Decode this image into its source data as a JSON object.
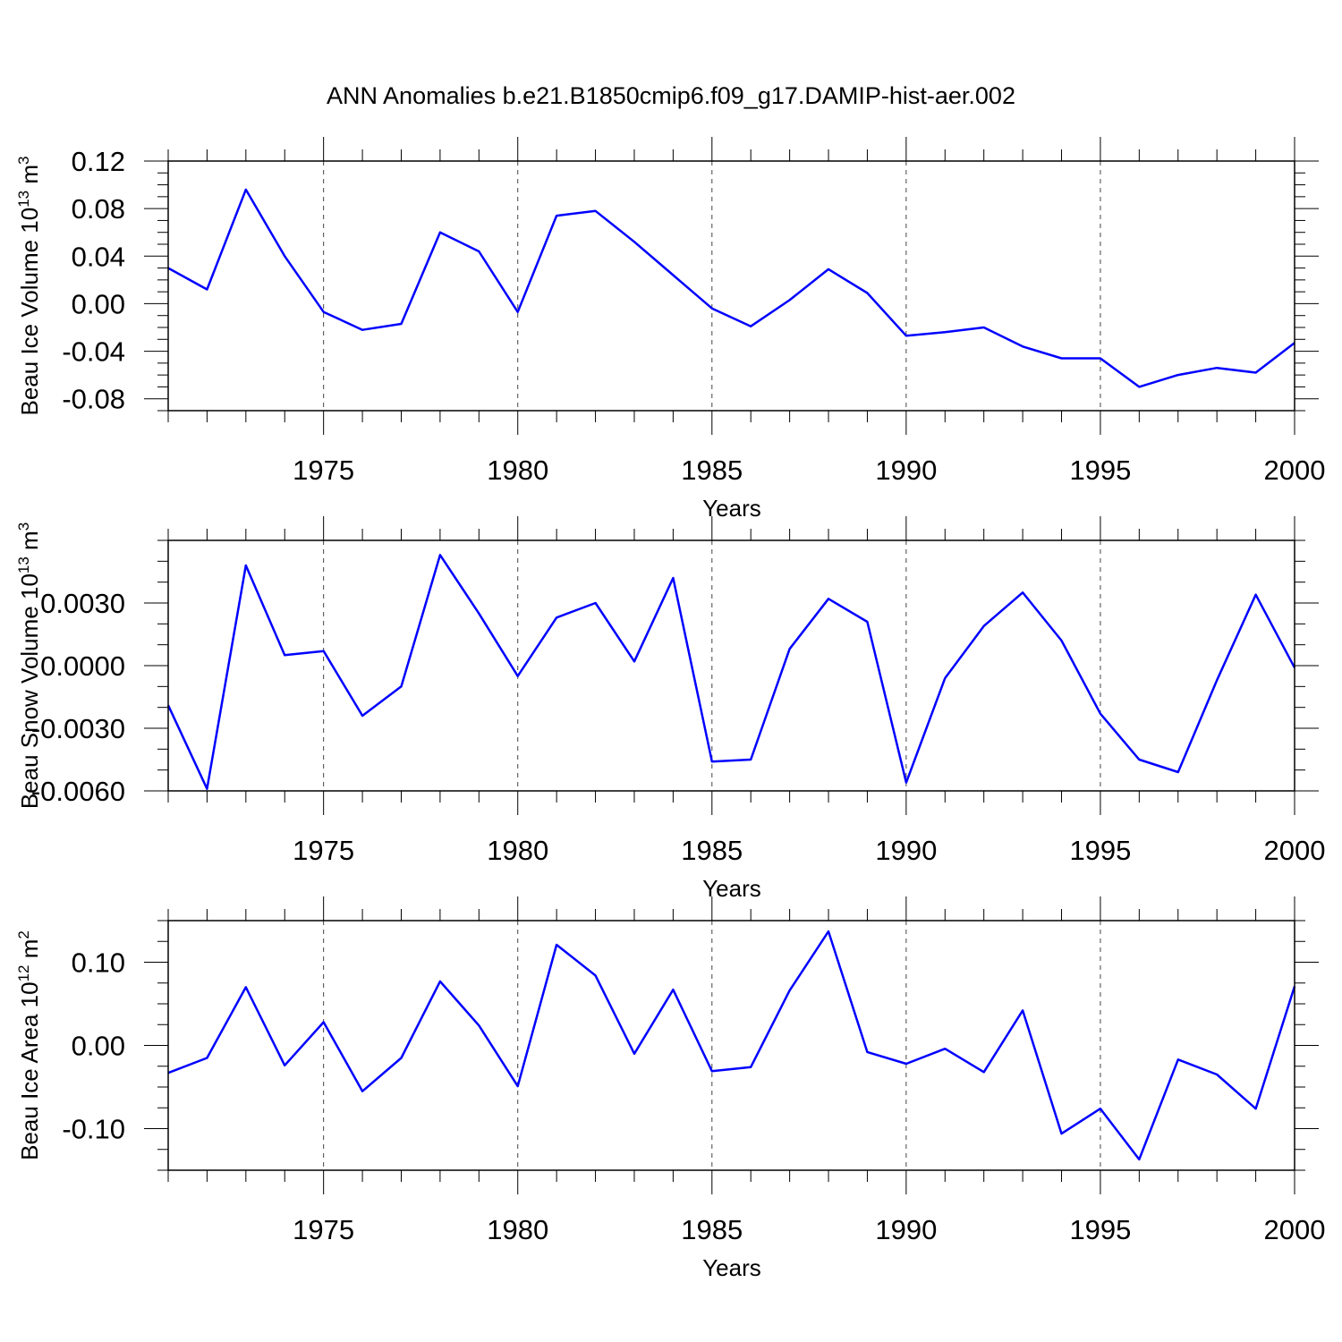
{
  "title": "ANN Anomalies b.e21.B1850cmip6.f09_g17.DAMIP-hist-aer.002",
  "colors": {
    "line": "#0000ff",
    "axes": "#000000",
    "grid": "#444444"
  },
  "chart_data": [
    {
      "type": "line",
      "name": "ice-volume",
      "ylabel_main": "Beau Ice Volume 10",
      "ylabel_sup": "13",
      "ylabel_unit": " m",
      "ylabel_unit_sup": "3",
      "xlabel": "Years",
      "xlim": [
        1971,
        2000
      ],
      "ylim": [
        -0.09,
        0.12
      ],
      "yticks": [
        0.12,
        0.08,
        0.04,
        0.0,
        -0.04,
        -0.08
      ],
      "ytick_labels": [
        "0.12",
        "0.08",
        "0.04",
        "0.00",
        "-0.04",
        "-0.08"
      ],
      "yminor_step": 0.01,
      "xticks": [
        1975,
        1980,
        1985,
        1990,
        1995,
        2000
      ],
      "xtick_labels": [
        "1975",
        "1980",
        "1985",
        "1990",
        "1995",
        "2000"
      ],
      "x": [
        1971,
        1972,
        1973,
        1974,
        1975,
        1976,
        1977,
        1978,
        1979,
        1980,
        1981,
        1982,
        1983,
        1984,
        1985,
        1986,
        1987,
        1988,
        1989,
        1990,
        1991,
        1992,
        1993,
        1994,
        1995,
        1996,
        1997,
        1998,
        1999,
        2000
      ],
      "values": [
        0.03,
        0.012,
        0.096,
        0.04,
        -0.007,
        -0.022,
        -0.017,
        0.06,
        0.044,
        -0.007,
        0.074,
        0.078,
        0.052,
        0.024,
        -0.004,
        -0.019,
        0.003,
        0.029,
        0.009,
        -0.027,
        -0.024,
        -0.02,
        -0.036,
        -0.046,
        -0.046,
        -0.07,
        -0.06,
        -0.054,
        -0.058,
        -0.033
      ]
    },
    {
      "type": "line",
      "name": "snow-volume",
      "ylabel_main": "Beau Snow Volume 10",
      "ylabel_sup": "13",
      "ylabel_unit": " m",
      "ylabel_unit_sup": "3",
      "xlabel": "Years",
      "xlim": [
        1971,
        2000
      ],
      "ylim": [
        -0.006,
        0.006
      ],
      "yticks": [
        0.003,
        0.0,
        -0.003,
        -0.006
      ],
      "ytick_labels": [
        "0.0030",
        "0.0000",
        "-0.0030",
        "-0.0060"
      ],
      "yminor_step": 0.001,
      "xticks": [
        1975,
        1980,
        1985,
        1990,
        1995,
        2000
      ],
      "xtick_labels": [
        "1975",
        "1980",
        "1985",
        "1990",
        "1995",
        "2000"
      ],
      "x": [
        1971,
        1972,
        1973,
        1974,
        1975,
        1976,
        1977,
        1978,
        1979,
        1980,
        1981,
        1982,
        1983,
        1984,
        1985,
        1986,
        1987,
        1988,
        1989,
        1990,
        1991,
        1992,
        1993,
        1994,
        1995,
        1996,
        1997,
        1998,
        1999,
        2000
      ],
      "values": [
        -0.0019,
        -0.0059,
        0.0048,
        0.0005,
        0.0007,
        -0.0024,
        -0.001,
        0.0053,
        0.0025,
        -0.0005,
        0.0023,
        0.003,
        0.0002,
        0.0042,
        -0.0046,
        -0.0045,
        0.0008,
        0.0032,
        0.0021,
        -0.0056,
        -0.0006,
        0.0019,
        0.0035,
        0.0012,
        -0.0023,
        -0.0045,
        -0.0051,
        -0.0007,
        0.0034,
        -0.0001
      ]
    },
    {
      "type": "line",
      "name": "ice-area",
      "ylabel_main": "Beau Ice Area 10",
      "ylabel_sup": "12",
      "ylabel_unit": " m",
      "ylabel_unit_sup": "2",
      "xlabel": "Years",
      "xlim": [
        1971,
        2000
      ],
      "ylim": [
        -0.15,
        0.15
      ],
      "yticks": [
        0.1,
        0.0,
        -0.1
      ],
      "ytick_labels": [
        "0.10",
        "0.00",
        "-0.10"
      ],
      "yminor_step": 0.025,
      "xticks": [
        1975,
        1980,
        1985,
        1990,
        1995,
        2000
      ],
      "xtick_labels": [
        "1975",
        "1980",
        "1985",
        "1990",
        "1995",
        "2000"
      ],
      "x": [
        1971,
        1972,
        1973,
        1974,
        1975,
        1976,
        1977,
        1978,
        1979,
        1980,
        1981,
        1982,
        1983,
        1984,
        1985,
        1986,
        1987,
        1988,
        1989,
        1990,
        1991,
        1992,
        1993,
        1994,
        1995,
        1996,
        1997,
        1998,
        1999,
        2000
      ],
      "values": [
        -0.033,
        -0.015,
        0.07,
        -0.024,
        0.028,
        -0.055,
        -0.015,
        0.077,
        0.024,
        -0.049,
        0.121,
        0.084,
        -0.01,
        0.067,
        -0.031,
        -0.026,
        0.066,
        0.137,
        -0.008,
        -0.022,
        -0.004,
        -0.032,
        0.042,
        -0.106,
        -0.076,
        -0.137,
        -0.017,
        -0.035,
        -0.076,
        0.071
      ]
    }
  ]
}
